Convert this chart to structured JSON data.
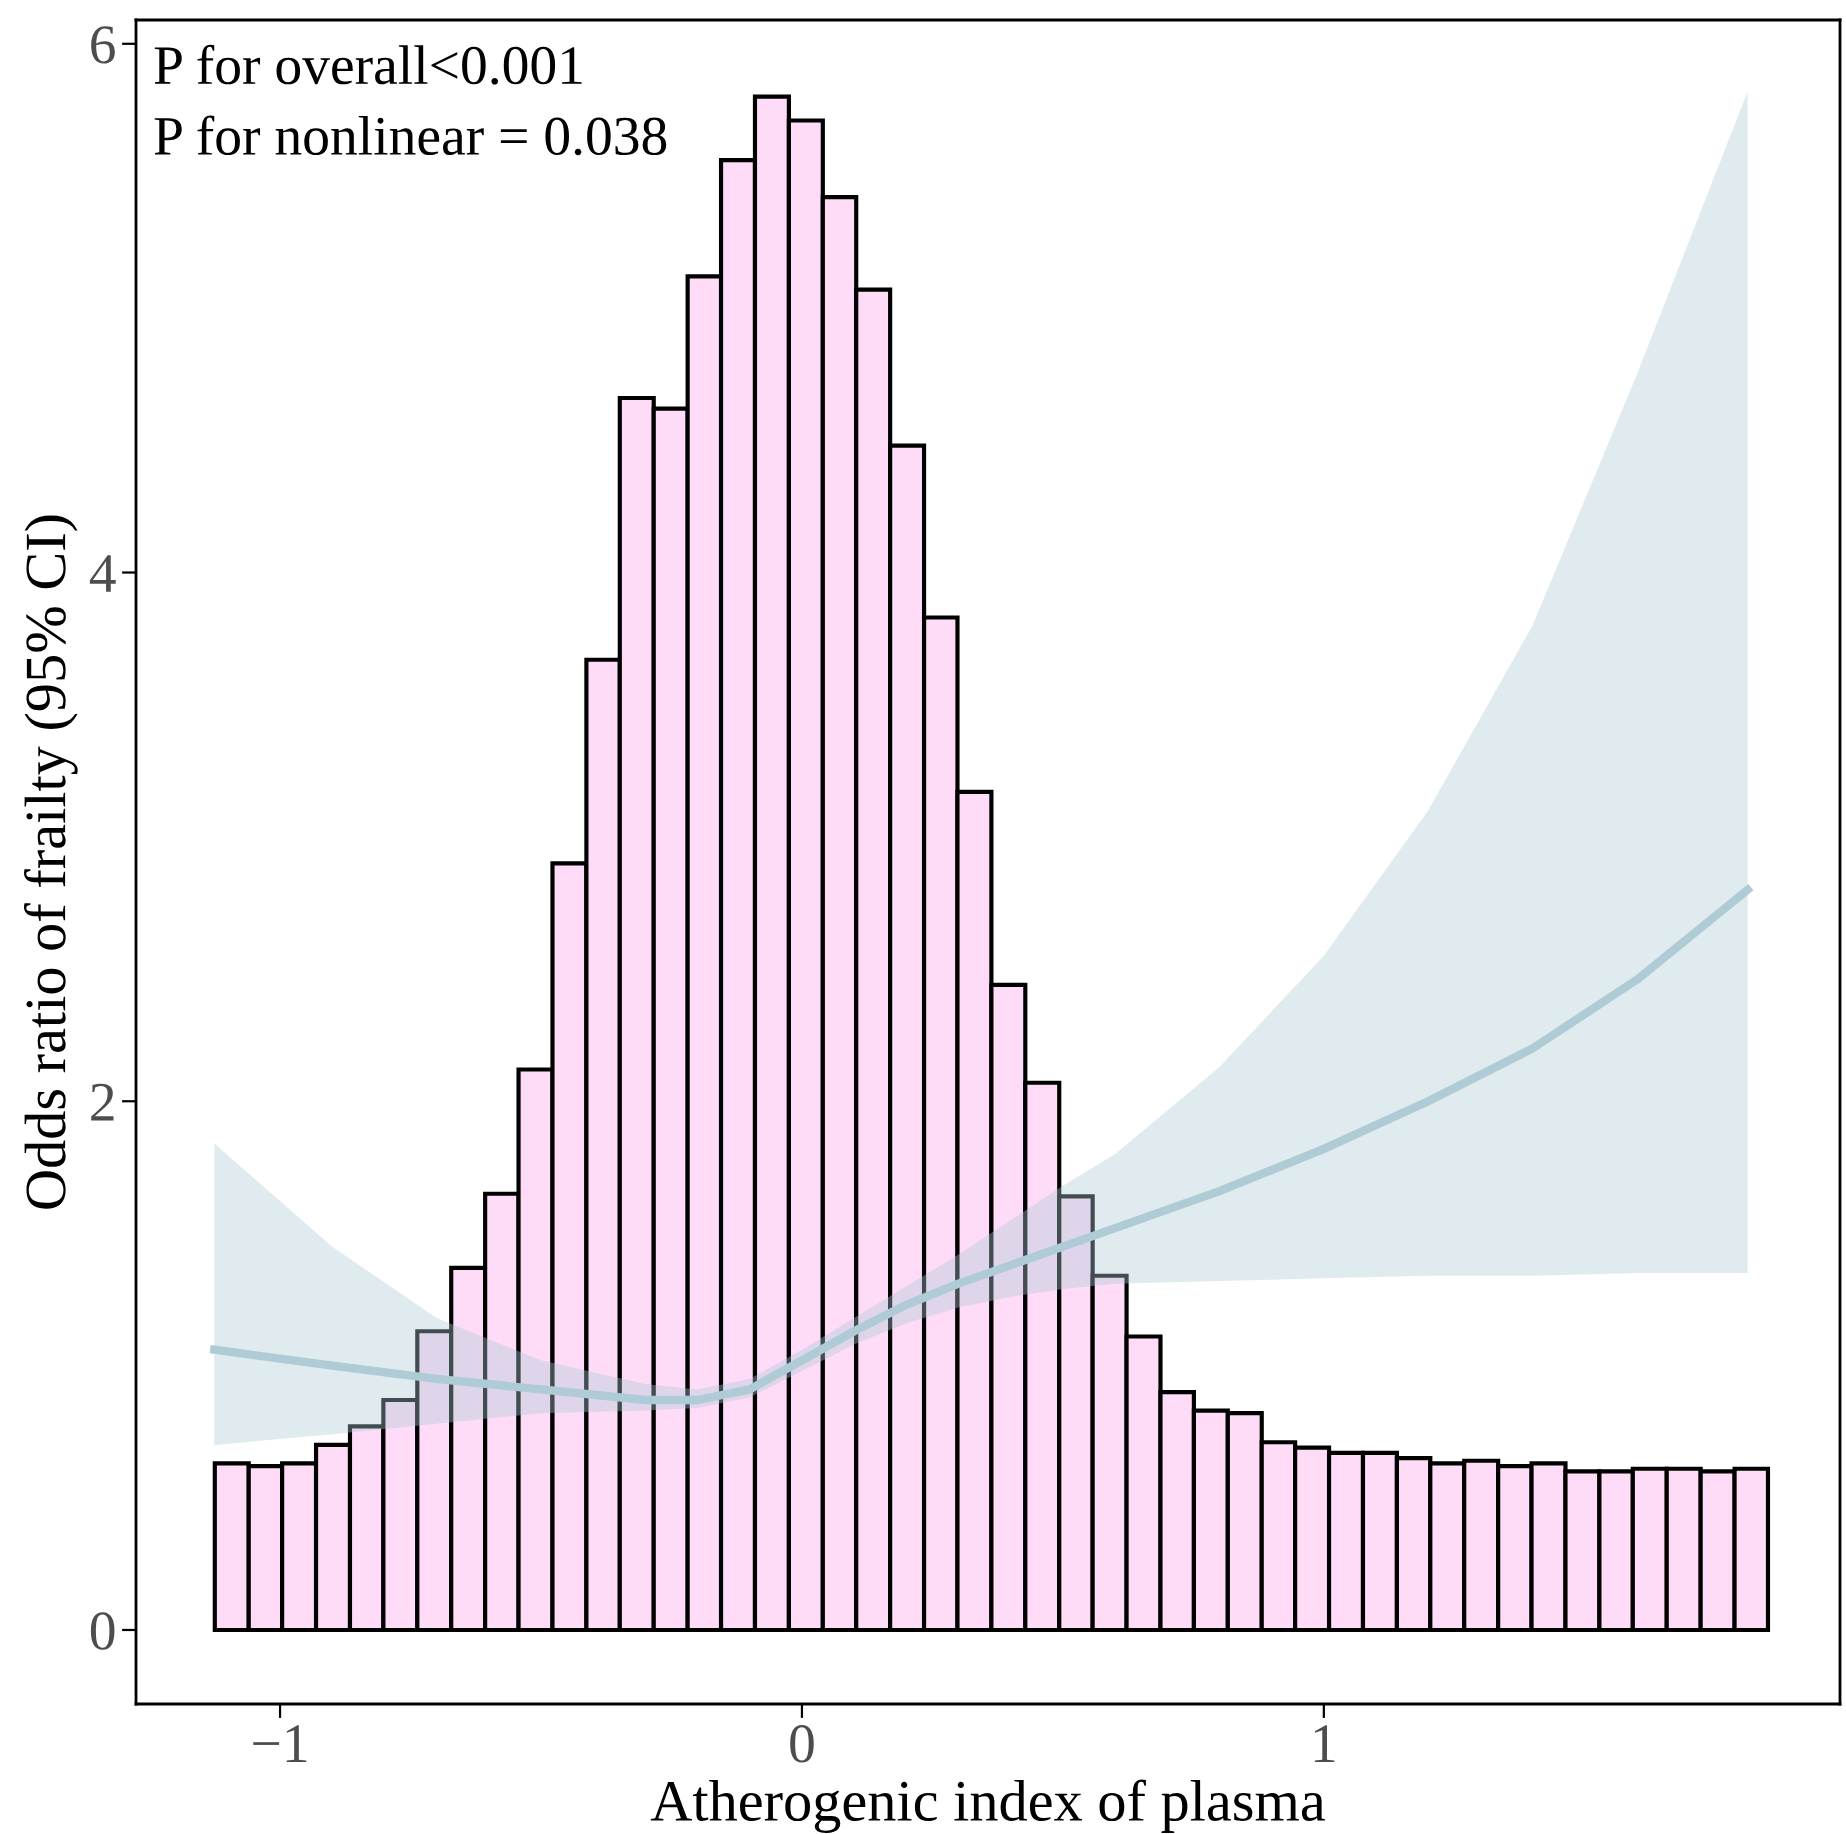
{
  "chart_data": {
    "type": "histogram",
    "xlabel": "Atherogenic index of plasma",
    "ylabel": "Odds ratio of frailty (95% CI)",
    "annotations": [
      "P for overall<0.001",
      "P for nonlinear = 0.038"
    ],
    "bins": [
      -1.125,
      -1.06,
      -0.996,
      -0.931,
      -0.866,
      -0.802,
      -0.737,
      -0.672,
      -0.607,
      -0.543,
      -0.478,
      -0.413,
      -0.349,
      -0.284,
      -0.219,
      -0.155,
      -0.09,
      -0.025,
      0.04,
      0.104,
      0.169,
      0.234,
      0.298,
      0.363,
      0.428,
      0.493,
      0.557,
      0.622,
      0.687,
      0.751,
      0.816,
      0.881,
      0.945,
      1.01,
      1.075,
      1.14,
      1.204,
      1.269,
      1.334,
      1.398,
      1.463,
      1.528,
      1.592,
      1.657,
      1.722,
      1.787,
      1.851
    ],
    "values": [
      0.63,
      0.62,
      0.63,
      0.7,
      0.77,
      0.87,
      1.13,
      1.37,
      1.65,
      2.12,
      2.9,
      3.67,
      4.66,
      4.62,
      5.12,
      5.56,
      5.8,
      5.71,
      5.42,
      5.07,
      4.48,
      3.83,
      3.17,
      2.44,
      2.07,
      1.64,
      1.34,
      1.11,
      0.9,
      0.83,
      0.82,
      0.71,
      0.69,
      0.67,
      0.67,
      0.65,
      0.63,
      0.64,
      0.62,
      0.63,
      0.6,
      0.6,
      0.61,
      0.61,
      0.6,
      0.61
    ],
    "color": "#fedcf8",
    "series": [
      {
        "type": "line",
        "color": "#aecbd6",
        "x": [
          -1.126,
          -0.9,
          -0.7,
          -0.5,
          -0.3,
          -0.2,
          -0.1,
          0,
          0.1,
          0.2,
          0.3,
          0.4,
          0.5,
          0.6,
          0.8,
          1.0,
          1.2,
          1.4,
          1.6,
          1.812
        ],
        "values": [
          1.06,
          1.0,
          0.95,
          0.91,
          0.87,
          0.87,
          0.91,
          1.02,
          1.13,
          1.23,
          1.31,
          1.38,
          1.45,
          1.52,
          1.66,
          1.82,
          2.0,
          2.2,
          2.46,
          2.8
        ],
        "lower": [
          0.7,
          0.74,
          0.78,
          0.82,
          0.83,
          0.84,
          0.88,
          0.98,
          1.08,
          1.16,
          1.22,
          1.26,
          1.29,
          1.31,
          1.32,
          1.33,
          1.34,
          1.34,
          1.35,
          1.35
        ],
        "upper": [
          1.84,
          1.45,
          1.18,
          1.02,
          0.93,
          0.91,
          0.95,
          1.06,
          1.18,
          1.3,
          1.42,
          1.55,
          1.68,
          1.8,
          2.13,
          2.55,
          3.1,
          3.8,
          4.75,
          5.82
        ]
      }
    ],
    "xlim": [
      -1.276,
      1.989
    ],
    "ylim": [
      -0.28,
      6.09
    ],
    "xticks": [
      {
        "value": -1,
        "label": "−1"
      },
      0,
      1
    ],
    "yticks": [
      0,
      2,
      4,
      6
    ],
    "grid": false
  }
}
